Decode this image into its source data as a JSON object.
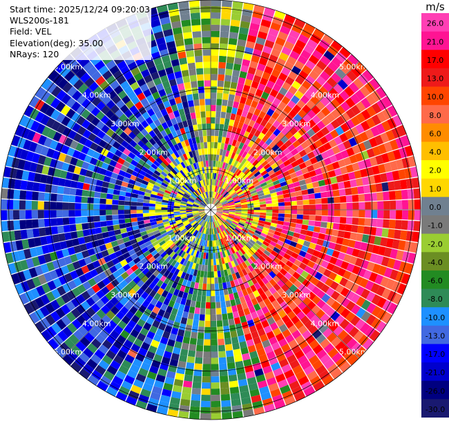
{
  "header": {
    "start_time": "Start time: 2025/12/24 09:20:03",
    "device": "WLS200s-181",
    "field": "Field: VEL",
    "elevation": "Elevation(deg): 35.00",
    "nrays": "NRays: 120"
  },
  "chart_data": {
    "type": "ppi-polar-heatmap",
    "title": "WLS200s-181",
    "field": "VEL",
    "start_time": "2025/12/24 09:20:03",
    "elevation_deg": 35.0,
    "n_rays": 120,
    "range_unit": "km",
    "range_rings": [
      {
        "value": 1.0,
        "label": "1.00km"
      },
      {
        "value": 2.0,
        "label": "2.00km"
      },
      {
        "value": 3.0,
        "label": "3.00km"
      },
      {
        "value": 4.0,
        "label": "4.00km"
      },
      {
        "value": 5.0,
        "label": "5.00km"
      }
    ],
    "max_range_km": 5.2,
    "spokes": 8,
    "colorbar": {
      "unit": "m/s",
      "ticks": [
        "26.0",
        "21.0",
        "17.0",
        "13.0",
        "10.0",
        "8.0",
        "6.0",
        "4.0",
        "2.0",
        "1.0",
        "0.0",
        "-1.0",
        "-2.0",
        "-4.0",
        "-6.0",
        "-8.0",
        "-10.0",
        "-13.0",
        "-17.0",
        "-21.0",
        "-26.0",
        "-30.0"
      ],
      "colors": [
        "#ff3fb4",
        "#ff1493",
        "#ff0000",
        "#ee1a1a",
        "#ff4500",
        "#ff6a4a",
        "#ff8c00",
        "#ffbf00",
        "#ffff00",
        "#ffd700",
        "#708090",
        "#7a7a7a",
        "#9acd32",
        "#6b8e23",
        "#228b22",
        "#2e8b57",
        "#1e90ff",
        "#4169e1",
        "#0000ff",
        "#0000cd",
        "#000080",
        "#191970"
      ]
    },
    "pattern": "random per-gate velocity with receding (warm) sector on the east half, approaching (cool) sector on the west and south-west, yellow/green clusters near center"
  }
}
